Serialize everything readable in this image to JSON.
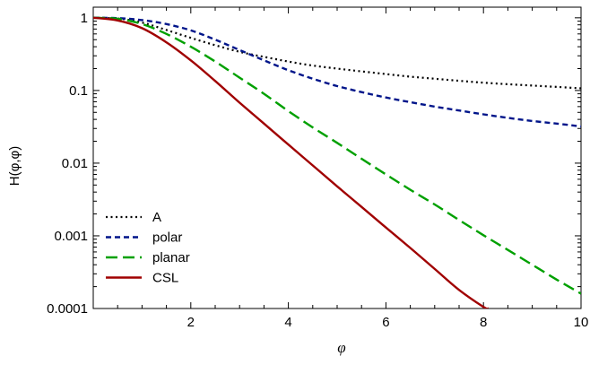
{
  "chart_data": {
    "type": "line",
    "title": "",
    "xlabel": "φ",
    "ylabel": "H(φ,φ)",
    "xlim": [
      0,
      10
    ],
    "ylim": [
      0.0001,
      1.4
    ],
    "yscale": "log",
    "x_ticks": [
      2,
      4,
      6,
      8,
      10
    ],
    "y_ticks": [
      {
        "value": 1,
        "label": "1"
      },
      {
        "value": 0.1,
        "label": "0.1"
      },
      {
        "value": 0.01,
        "label": "0.01"
      },
      {
        "value": 0.001,
        "label": "0.001"
      },
      {
        "value": 0.0001,
        "label": "0.0001"
      }
    ],
    "grid": false,
    "legend_position": "bottom-left",
    "series": [
      {
        "name": "A",
        "color": "#000000",
        "dash": "dotted",
        "x": [
          0,
          0.5,
          1,
          1.5,
          2,
          2.5,
          3,
          3.5,
          4,
          4.5,
          5,
          5.5,
          6,
          6.5,
          7,
          7.5,
          8,
          8.5,
          9,
          9.5,
          10
        ],
        "y": [
          1.0,
          0.98,
          0.86,
          0.68,
          0.53,
          0.42,
          0.34,
          0.29,
          0.25,
          0.22,
          0.2,
          0.183,
          0.168,
          0.155,
          0.145,
          0.136,
          0.128,
          0.122,
          0.117,
          0.112,
          0.107
        ]
      },
      {
        "name": "polar",
        "color": "#00158a",
        "dash": "dashed",
        "x": [
          0,
          0.5,
          1,
          1.5,
          2,
          2.5,
          3,
          3.5,
          4,
          4.5,
          5,
          5.5,
          6,
          6.5,
          7,
          7.5,
          8,
          8.5,
          9,
          9.5,
          10
        ],
        "y": [
          1.0,
          0.99,
          0.93,
          0.82,
          0.67,
          0.5,
          0.36,
          0.26,
          0.19,
          0.145,
          0.115,
          0.095,
          0.08,
          0.069,
          0.06,
          0.053,
          0.047,
          0.042,
          0.038,
          0.035,
          0.032
        ]
      },
      {
        "name": "planar",
        "color": "#00a000",
        "dash": "longdashed",
        "x": [
          0,
          0.5,
          1,
          1.5,
          2,
          2.5,
          3,
          3.5,
          4,
          4.5,
          5,
          5.5,
          6,
          6.5,
          7,
          7.5,
          8,
          8.5,
          9,
          9.5,
          10
        ],
        "y": [
          1.0,
          0.97,
          0.82,
          0.6,
          0.4,
          0.25,
          0.15,
          0.09,
          0.052,
          0.031,
          0.019,
          0.0115,
          0.007,
          0.0043,
          0.0027,
          0.00165,
          0.00102,
          0.00064,
          0.0004,
          0.00025,
          0.00016
        ]
      },
      {
        "name": "CSL",
        "color": "#a00000",
        "dash": "solid",
        "x": [
          0,
          0.5,
          1,
          1.5,
          2,
          2.5,
          3,
          3.5,
          4,
          4.5,
          5,
          5.5,
          6,
          6.5,
          7,
          7.5,
          8,
          8.1
        ],
        "y": [
          1.0,
          0.92,
          0.72,
          0.46,
          0.26,
          0.135,
          0.068,
          0.035,
          0.018,
          0.0093,
          0.0048,
          0.0025,
          0.0013,
          0.00068,
          0.00035,
          0.00018,
          0.000105,
          0.0001
        ]
      }
    ]
  }
}
